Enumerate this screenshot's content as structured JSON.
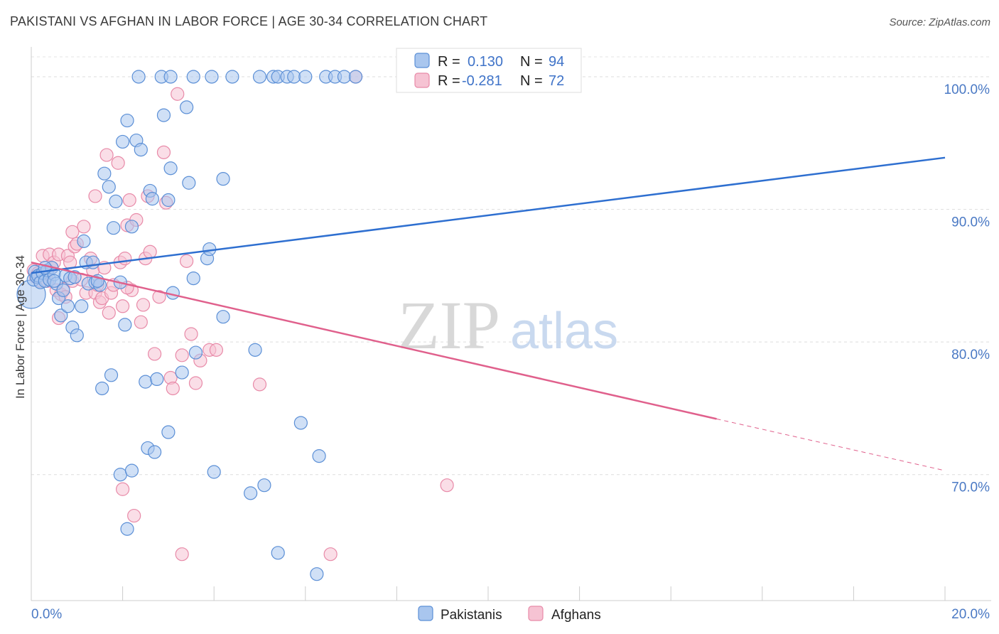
{
  "title": "PAKISTANI VS AFGHAN IN LABOR FORCE | AGE 30-34 CORRELATION CHART",
  "source": "Source: ZipAtlas.com",
  "watermark": {
    "zip": "ZIP",
    "atlas": "atlas"
  },
  "colors": {
    "pakistani_fill": "#a9c6ee",
    "pakistani_stroke": "#5b8fd6",
    "pakistani_line": "#2e6fd0",
    "afghan_fill": "#f6c3d3",
    "afghan_stroke": "#e88aa8",
    "afghan_line": "#e0608c",
    "axis_text": "#4a79c4",
    "grid": "#dddddd"
  },
  "legend": {
    "rows": [
      {
        "r_label": "R =",
        "r_value": "0.130",
        "n_label": "N =",
        "n_value": "94",
        "series": "pakistanis"
      },
      {
        "r_label": "R =",
        "r_value": "-0.281",
        "n_label": "N =",
        "n_value": "72",
        "series": "afghans"
      }
    ]
  },
  "bottom_legend": [
    "Pakistanis",
    "Afghans"
  ],
  "chart_data": {
    "type": "scatter",
    "title": "PAKISTANI VS AFGHAN IN LABOR FORCE | AGE 30-34 CORRELATION CHART",
    "xlabel": "",
    "ylabel": "In Labor Force | Age 30-34",
    "xlim": [
      0,
      20
    ],
    "ylim": [
      60.5,
      101.5
    ],
    "x_ticks": [
      "0.0%",
      "20.0%"
    ],
    "y_ticks": [
      {
        "value": 100,
        "label": "100.0%"
      },
      {
        "value": 90,
        "label": "90.0%"
      },
      {
        "value": 80,
        "label": "80.0%"
      },
      {
        "value": 70,
        "label": "70.0%"
      }
    ],
    "grid": true,
    "legend_position": "top-center",
    "series": [
      {
        "name": "Pakistanis",
        "r": 0.13,
        "n": 94,
        "trend": {
          "x": [
            0,
            20
          ],
          "y": [
            85.2,
            93.9
          ]
        },
        "points": [
          [
            0.0,
            83.6
          ],
          [
            0.05,
            84.7
          ],
          [
            0.08,
            85.3
          ],
          [
            0.12,
            84.9
          ],
          [
            0.15,
            85.0
          ],
          [
            0.2,
            84.5
          ],
          [
            0.25,
            85.2
          ],
          [
            0.3,
            84.6
          ],
          [
            0.35,
            85.4
          ],
          [
            0.4,
            84.7
          ],
          [
            0.45,
            85.6
          ],
          [
            0.5,
            85.1
          ],
          [
            0.55,
            84.4
          ],
          [
            0.6,
            83.3
          ],
          [
            0.65,
            82.0
          ],
          [
            0.7,
            83.9
          ],
          [
            0.75,
            85.0
          ],
          [
            0.8,
            82.7
          ],
          [
            0.85,
            84.8
          ],
          [
            0.9,
            81.1
          ],
          [
            1.0,
            80.5
          ],
          [
            1.1,
            82.7
          ],
          [
            1.15,
            87.6
          ],
          [
            1.2,
            86.0
          ],
          [
            1.25,
            84.4
          ],
          [
            1.35,
            86.0
          ],
          [
            1.4,
            84.5
          ],
          [
            1.5,
            84.3
          ],
          [
            1.55,
            76.5
          ],
          [
            1.6,
            92.7
          ],
          [
            1.7,
            91.7
          ],
          [
            1.75,
            77.5
          ],
          [
            1.8,
            88.6
          ],
          [
            1.85,
            90.6
          ],
          [
            1.95,
            84.5
          ],
          [
            2.0,
            95.1
          ],
          [
            2.05,
            81.3
          ],
          [
            2.1,
            96.7
          ],
          [
            2.2,
            88.7
          ],
          [
            2.3,
            95.2
          ],
          [
            2.4,
            94.5
          ],
          [
            2.5,
            77.0
          ],
          [
            2.55,
            72.0
          ],
          [
            2.6,
            91.4
          ],
          [
            2.65,
            90.8
          ],
          [
            2.7,
            71.7
          ],
          [
            2.75,
            77.2
          ],
          [
            2.9,
            97.1
          ],
          [
            3.0,
            90.7
          ],
          [
            3.05,
            93.1
          ],
          [
            3.1,
            83.7
          ],
          [
            3.3,
            77.7
          ],
          [
            3.4,
            97.7
          ],
          [
            3.45,
            92.0
          ],
          [
            3.6,
            79.2
          ],
          [
            3.85,
            86.3
          ],
          [
            3.9,
            87.0
          ],
          [
            4.0,
            70.2
          ],
          [
            4.2,
            81.9
          ],
          [
            4.2,
            92.3
          ],
          [
            4.8,
            68.6
          ],
          [
            4.9,
            79.4
          ],
          [
            5.1,
            69.2
          ],
          [
            5.4,
            64.1
          ],
          [
            5.9,
            73.9
          ],
          [
            6.3,
            71.4
          ],
          [
            6.25,
            62.5
          ],
          [
            1.95,
            70.0
          ],
          [
            2.2,
            70.3
          ],
          [
            3.0,
            73.2
          ],
          [
            3.55,
            84.8
          ],
          [
            2.1,
            65.9
          ],
          [
            2.35,
            100.0
          ],
          [
            2.85,
            100.0
          ],
          [
            3.05,
            100.0
          ],
          [
            3.55,
            100.0
          ],
          [
            3.95,
            100.0
          ],
          [
            4.4,
            100.0
          ],
          [
            5.0,
            100.0
          ],
          [
            5.3,
            100.0
          ],
          [
            5.4,
            100.0
          ],
          [
            5.6,
            100.0
          ],
          [
            5.75,
            100.0
          ],
          [
            6.0,
            100.0
          ],
          [
            6.45,
            100.0
          ],
          [
            6.65,
            100.0
          ],
          [
            6.85,
            100.0
          ],
          [
            7.1,
            100.0
          ],
          [
            8.15,
            100.0
          ],
          [
            11.6,
            100.0
          ],
          [
            0.3,
            85.6
          ],
          [
            0.5,
            84.6
          ],
          [
            0.95,
            84.9
          ],
          [
            1.45,
            84.6
          ]
        ]
      },
      {
        "name": "Afghans",
        "r": -0.281,
        "n": 72,
        "trend": {
          "x": [
            0,
            15
          ],
          "y": [
            86.0,
            74.2
          ]
        },
        "trend_dashed": {
          "x": [
            15,
            20
          ],
          "y": [
            74.2,
            70.3
          ]
        },
        "points": [
          [
            0.05,
            85.4
          ],
          [
            0.1,
            84.9
          ],
          [
            0.15,
            85.2
          ],
          [
            0.2,
            84.6
          ],
          [
            0.25,
            86.5
          ],
          [
            0.3,
            85.1
          ],
          [
            0.35,
            84.6
          ],
          [
            0.4,
            86.6
          ],
          [
            0.45,
            85.6
          ],
          [
            0.5,
            86.0
          ],
          [
            0.55,
            83.9
          ],
          [
            0.6,
            86.6
          ],
          [
            0.65,
            83.6
          ],
          [
            0.7,
            84.0
          ],
          [
            0.75,
            83.4
          ],
          [
            0.8,
            86.5
          ],
          [
            0.85,
            86.0
          ],
          [
            0.9,
            84.6
          ],
          [
            0.95,
            87.2
          ],
          [
            1.0,
            87.4
          ],
          [
            1.1,
            84.7
          ],
          [
            1.15,
            88.7
          ],
          [
            1.2,
            83.7
          ],
          [
            1.3,
            86.3
          ],
          [
            1.35,
            85.4
          ],
          [
            1.4,
            83.7
          ],
          [
            1.45,
            84.3
          ],
          [
            1.5,
            83.0
          ],
          [
            1.55,
            83.3
          ],
          [
            1.6,
            85.6
          ],
          [
            1.65,
            94.1
          ],
          [
            1.7,
            82.2
          ],
          [
            1.75,
            83.7
          ],
          [
            1.8,
            84.3
          ],
          [
            1.9,
            93.5
          ],
          [
            1.95,
            86.0
          ],
          [
            2.0,
            82.7
          ],
          [
            2.05,
            86.3
          ],
          [
            2.1,
            88.8
          ],
          [
            2.15,
            90.7
          ],
          [
            2.2,
            83.9
          ],
          [
            2.3,
            89.2
          ],
          [
            2.4,
            81.5
          ],
          [
            2.45,
            82.8
          ],
          [
            2.5,
            86.3
          ],
          [
            2.6,
            86.8
          ],
          [
            2.7,
            79.1
          ],
          [
            2.8,
            83.4
          ],
          [
            2.9,
            94.3
          ],
          [
            2.95,
            90.5
          ],
          [
            3.05,
            77.3
          ],
          [
            3.1,
            76.5
          ],
          [
            3.2,
            98.7
          ],
          [
            3.3,
            79.0
          ],
          [
            3.4,
            86.1
          ],
          [
            3.5,
            80.6
          ],
          [
            3.6,
            76.9
          ],
          [
            3.7,
            78.6
          ],
          [
            3.9,
            79.4
          ],
          [
            4.05,
            79.4
          ],
          [
            5.0,
            76.8
          ],
          [
            6.55,
            64.0
          ],
          [
            7.1,
            100.0
          ],
          [
            9.1,
            69.2
          ],
          [
            2.0,
            68.9
          ],
          [
            2.25,
            66.9
          ],
          [
            3.3,
            64.0
          ],
          [
            1.4,
            91.0
          ],
          [
            2.55,
            91.0
          ],
          [
            0.6,
            81.8
          ],
          [
            0.9,
            88.3
          ],
          [
            2.1,
            84.1
          ]
        ]
      }
    ]
  }
}
